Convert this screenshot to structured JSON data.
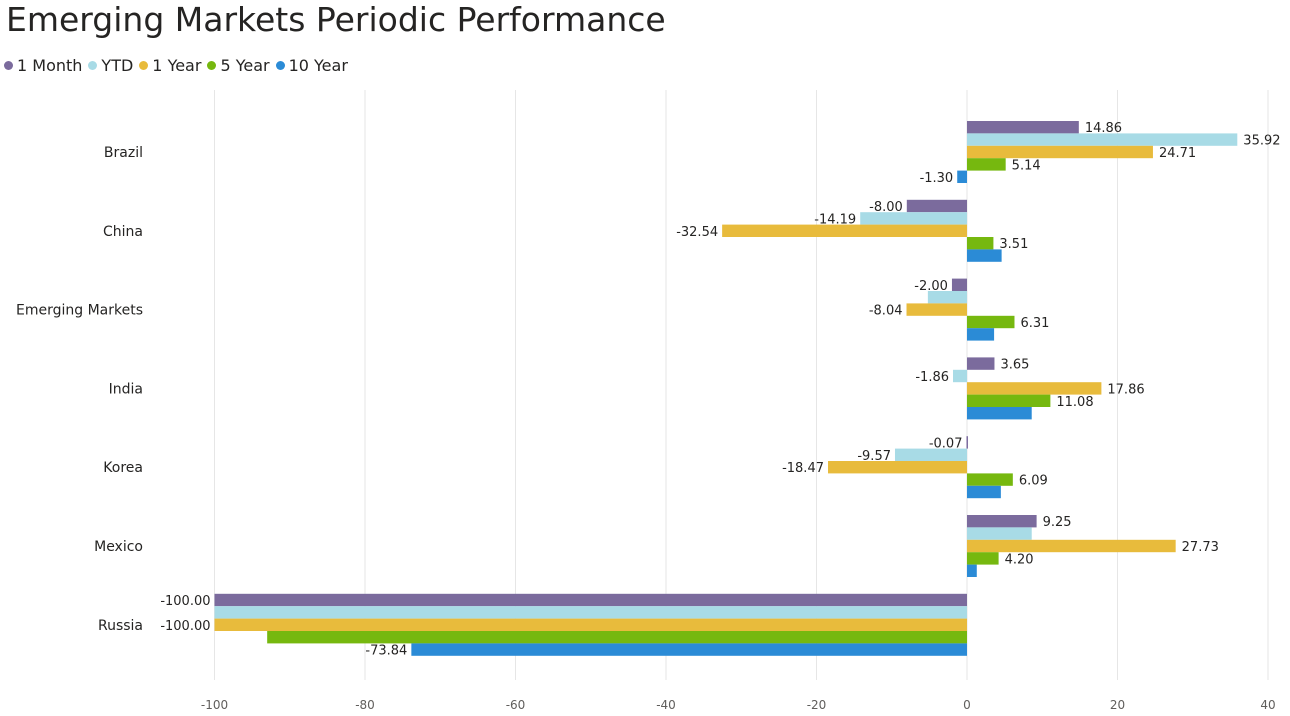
{
  "chart_data": {
    "type": "bar",
    "orientation": "horizontal",
    "title": "Emerging Markets Periodic Performance",
    "categories": [
      "Brazil",
      "China",
      "Emerging Markets",
      "India",
      "Korea",
      "Mexico",
      "Russia"
    ],
    "series": [
      {
        "name": "1 Month",
        "color": "#7b6b9d",
        "values": [
          14.86,
          -8.0,
          -2.0,
          3.65,
          -0.07,
          9.25,
          -100.0
        ],
        "labels": [
          "14.86",
          "-8.00",
          "-2.00",
          "3.65",
          "-0.07",
          "9.25",
          "-100.00"
        ]
      },
      {
        "name": "YTD",
        "color": "#a8dbe6",
        "values": [
          35.92,
          -14.19,
          -5.2,
          -1.86,
          -9.57,
          8.6,
          -100.0
        ],
        "labels": [
          "35.92",
          "-14.19",
          "",
          "-1.86",
          "-9.57",
          "",
          ""
        ]
      },
      {
        "name": "1 Year",
        "color": "#e8bb3c",
        "values": [
          24.71,
          -32.54,
          -8.04,
          17.86,
          -18.47,
          27.73,
          -100.0
        ],
        "labels": [
          "24.71",
          "-32.54",
          "-8.04",
          "17.86",
          "-18.47",
          "27.73",
          "-100.00"
        ]
      },
      {
        "name": "5 Year",
        "color": "#76b80f",
        "values": [
          5.14,
          3.51,
          6.31,
          11.08,
          6.09,
          4.2,
          -93.0
        ],
        "labels": [
          "5.14",
          "3.51",
          "6.31",
          "11.08",
          "6.09",
          "4.20",
          ""
        ]
      },
      {
        "name": "10 Year",
        "color": "#2b8bd6",
        "values": [
          -1.3,
          4.6,
          3.6,
          8.6,
          4.5,
          1.3,
          -73.84
        ],
        "labels": [
          "-1.30",
          "",
          "",
          "",
          "",
          "",
          "-73.84"
        ]
      }
    ],
    "xlim": [
      -100,
      40
    ],
    "xticks": [
      "-100",
      "-80",
      "-60",
      "-40",
      "-20",
      "0",
      "20",
      "40"
    ],
    "xtick_values": [
      -100,
      -80,
      -60,
      -40,
      -20,
      0,
      20,
      40
    ],
    "xlabel": "",
    "ylabel": "",
    "grid": true,
    "legend_position": "top-left"
  }
}
